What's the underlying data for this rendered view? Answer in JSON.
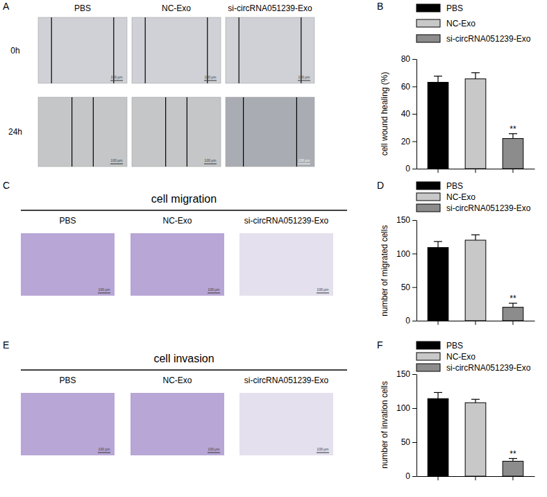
{
  "panel_labels": [
    "A",
    "B",
    "C",
    "D",
    "E",
    "F"
  ],
  "image_panels": {
    "groups": [
      "PBS",
      "NC-Exo",
      "si-circRNA051239-Exo"
    ],
    "wound_healing": {
      "times": [
        "0h",
        "24h"
      ]
    },
    "migration": {
      "title": "cell migration"
    },
    "invasion": {
      "title": "cell invasion"
    },
    "scale_bar": "100 μm"
  },
  "chart_data": [
    {
      "type": "bar",
      "categories": [
        "PBS",
        "NC-Exo",
        "si-circRNA051239-Exo"
      ],
      "values": [
        63,
        65.5,
        22
      ],
      "errors": [
        4.5,
        4.5,
        3.5
      ],
      "colors": [
        "#000000",
        "#c8c8c8",
        "#8c8c8c"
      ],
      "y_label": "cell wound healing  (%)",
      "ylim": [
        0,
        80
      ],
      "yticks": [
        0,
        20,
        40,
        60,
        80
      ],
      "legend": "top",
      "tick_labels": "y",
      "annotations": [
        {
          "category": "si-circRNA051239-Exo",
          "text": "**"
        }
      ]
    },
    {
      "type": "bar",
      "categories": [
        "PBS",
        "NC-Exo",
        "si-circRNA051239-Exo"
      ],
      "values": [
        109,
        120,
        20
      ],
      "errors": [
        9,
        8,
        6
      ],
      "colors": [
        "#000000",
        "#c8c8c8",
        "#8c8c8c"
      ],
      "y_label": "number of migrated cells",
      "ylim": [
        0,
        150
      ],
      "yticks": [
        0,
        50,
        100,
        150
      ],
      "legend": "top",
      "tick_labels": "y",
      "annotations": [
        {
          "category": "si-circRNA051239-Exo",
          "text": "**"
        }
      ]
    },
    {
      "type": "bar",
      "categories": [
        "PBS",
        "NC-Exo",
        "si-circRNA051239-Exo"
      ],
      "values": [
        114,
        108,
        22
      ],
      "errors": [
        9,
        5,
        4
      ],
      "colors": [
        "#000000",
        "#c8c8c8",
        "#8c8c8c"
      ],
      "y_label": "number of invation cells",
      "ylim": [
        0,
        150
      ],
      "yticks": [
        0,
        50,
        100,
        150
      ],
      "legend": "top",
      "tick_labels": "y",
      "annotations": [
        {
          "category": "si-circRNA051239-Exo",
          "text": "**"
        }
      ]
    }
  ]
}
